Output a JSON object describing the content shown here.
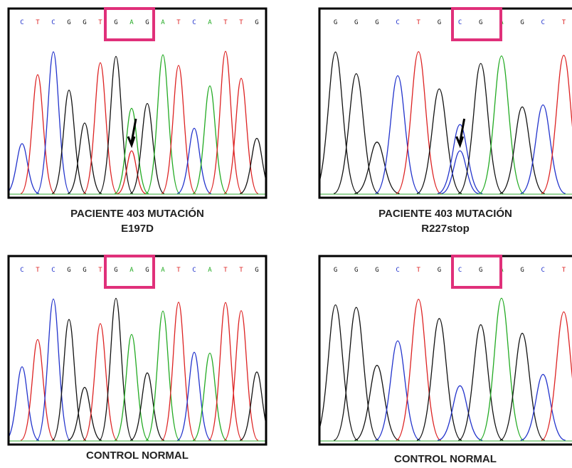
{
  "panels": [
    {
      "bases": [
        "C",
        "T",
        "C",
        "G",
        "G",
        "T",
        "G",
        "A",
        "G",
        "A",
        "T",
        "C",
        "A",
        "T",
        "T",
        "G"
      ],
      "caption": [
        "PACIENTE 403 MUTACIÓN",
        "E197D"
      ]
    },
    {
      "bases": [
        "G",
        "G",
        "G",
        "C",
        "T",
        "G",
        "C",
        "G",
        "A",
        "G",
        "C",
        "T"
      ],
      "caption": [
        "PACIENTE 403 MUTACIÓN",
        "R227stop"
      ]
    },
    {
      "bases": [
        "C",
        "T",
        "C",
        "G",
        "G",
        "T",
        "G",
        "A",
        "G",
        "A",
        "T",
        "C",
        "A",
        "T",
        "T",
        "G"
      ],
      "caption": [
        "CONTROL NORMAL"
      ]
    },
    {
      "bases": [
        "G",
        "G",
        "G",
        "C",
        "T",
        "G",
        "C",
        "G",
        "A",
        "G",
        "C",
        "T"
      ],
      "caption": [
        "CONTROL NORMAL"
      ]
    }
  ]
}
